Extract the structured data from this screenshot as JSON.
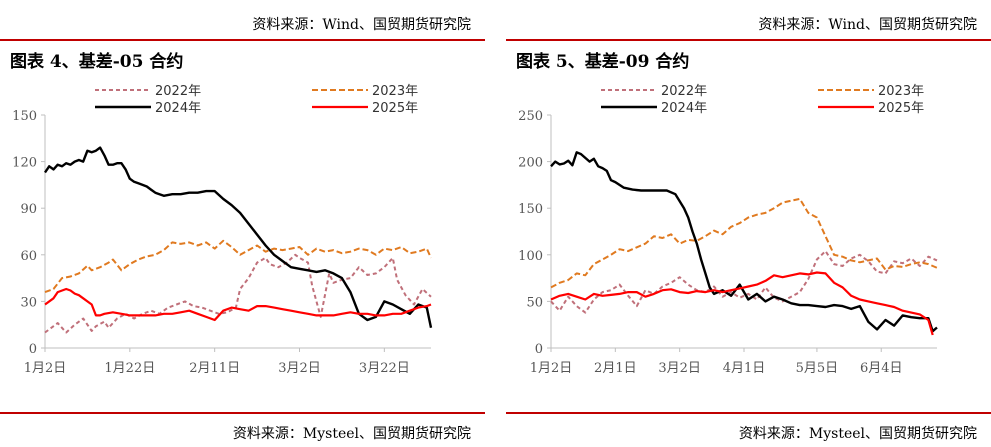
{
  "colors": {
    "accent_rule": "#c00000",
    "s2022": "#c0707a",
    "s2023": "#e07a20",
    "s2024": "#000000",
    "s2025": "#ff0000"
  },
  "panels": [
    {
      "source_top": "资料来源：Wind、国贸期货研究院",
      "title": "图表 4、基差-05 合约",
      "source_bottom": "资料来源：Mysteel、国贸期货研究院",
      "chart_data": {
        "type": "line",
        "title": "图表 4、基差-05 合约",
        "ylim": [
          0,
          150
        ],
        "yticks": [
          0,
          30,
          60,
          90,
          120,
          150
        ],
        "xlim": [
          0,
          91
        ],
        "xticks": [
          {
            "pos": 0,
            "label": "1月2日"
          },
          {
            "pos": 20,
            "label": "1月22日"
          },
          {
            "pos": 40,
            "label": "2月11日"
          },
          {
            "pos": 60,
            "label": "3月2日"
          },
          {
            "pos": 80,
            "label": "3月22日"
          }
        ],
        "legend": [
          "2022年",
          "2023年",
          "2024年",
          "2025年"
        ],
        "series": [
          {
            "name": "2022年",
            "style": "dash-small",
            "x": [
              0,
              3,
              5,
              7,
              9,
              11,
              12,
              14,
              15,
              17,
              19,
              21,
              23,
              25,
              27,
              29,
              31,
              33,
              35,
              37,
              39,
              41,
              43,
              45,
              46,
              48,
              50,
              52,
              53,
              55,
              57,
              59,
              60,
              62,
              63,
              65,
              67,
              68,
              70,
              72,
              74,
              76,
              78,
              80,
              82,
              83,
              85,
              87,
              89,
              91
            ],
            "y": [
              10,
              16,
              10,
              15,
              19,
              11,
              14,
              17,
              13,
              19,
              22,
              19,
              22,
              24,
              22,
              26,
              28,
              30,
              27,
              26,
              24,
              22,
              23,
              26,
              38,
              45,
              55,
              58,
              54,
              52,
              55,
              60,
              58,
              55,
              40,
              20,
              48,
              42,
              44,
              45,
              52,
              47,
              48,
              52,
              58,
              44,
              34,
              28,
              38,
              33
            ]
          },
          {
            "name": "2023年",
            "style": "dash",
            "x": [
              0,
              2,
              4,
              6,
              8,
              10,
              11,
              13,
              15,
              16,
              18,
              20,
              22,
              24,
              26,
              28,
              30,
              32,
              34,
              36,
              38,
              40,
              42,
              44,
              46,
              48,
              50,
              52,
              54,
              56,
              58,
              60,
              62,
              64,
              66,
              68,
              70,
              72,
              74,
              76,
              78,
              80,
              82,
              84,
              86,
              88,
              90,
              91
            ],
            "y": [
              36,
              38,
              45,
              46,
              48,
              53,
              50,
              52,
              55,
              57,
              50,
              54,
              57,
              59,
              60,
              63,
              68,
              67,
              68,
              66,
              68,
              64,
              69,
              65,
              60,
              63,
              66,
              62,
              64,
              63,
              64,
              65,
              60,
              64,
              62,
              63,
              61,
              62,
              64,
              63,
              60,
              64,
              63,
              65,
              61,
              62,
              64,
              58
            ]
          },
          {
            "name": "2024年",
            "style": "solid",
            "x": [
              0,
              1,
              2,
              3,
              4,
              5,
              6,
              7,
              8,
              9,
              10,
              11,
              12,
              13,
              14,
              15,
              16,
              17,
              18,
              19,
              20,
              21,
              22,
              23,
              24,
              25,
              26,
              27,
              28,
              30,
              32,
              34,
              36,
              38,
              40,
              42,
              44,
              46,
              48,
              50,
              52,
              54,
              56,
              58,
              60,
              62,
              64,
              66,
              68,
              70,
              72,
              74,
              76,
              78,
              80,
              82,
              84,
              86,
              88,
              90,
              91
            ],
            "y": [
              113,
              117,
              115,
              118,
              117,
              119,
              118,
              120,
              121,
              120,
              127,
              126,
              127,
              129,
              124,
              118,
              118,
              119,
              119,
              115,
              109,
              107,
              106,
              105,
              104,
              102,
              100,
              99,
              98,
              99,
              99,
              100,
              100,
              101,
              101,
              96,
              92,
              87,
              80,
              73,
              66,
              60,
              56,
              52,
              51,
              50,
              49,
              50,
              48,
              45,
              36,
              22,
              18,
              20,
              30,
              28,
              25,
              22,
              28,
              26,
              13
            ]
          },
          {
            "name": "2025年",
            "style": "solid",
            "x": [
              0,
              2,
              3,
              5,
              6,
              7,
              8,
              9,
              10,
              11,
              12,
              13,
              14,
              16,
              18,
              20,
              22,
              24,
              26,
              28,
              30,
              32,
              34,
              36,
              38,
              40,
              42,
              44,
              46,
              48,
              50,
              52,
              54,
              56,
              58,
              60,
              62,
              64,
              66,
              68,
              70,
              72,
              74,
              76,
              78,
              80,
              82,
              84,
              86,
              88,
              90,
              91
            ],
            "y": [
              28,
              32,
              36,
              38,
              37,
              35,
              34,
              32,
              30,
              28,
              21,
              21,
              22,
              23,
              22,
              21,
              21,
              21,
              21,
              22,
              22,
              23,
              24,
              22,
              20,
              18,
              24,
              26,
              25,
              24,
              27,
              27,
              26,
              25,
              24,
              23,
              22,
              21,
              21,
              21,
              22,
              23,
              22,
              22,
              21,
              21,
              22,
              22,
              24,
              26,
              27,
              28
            ]
          }
        ]
      }
    },
    {
      "source_top": "资料来源：Wind、国贸期货研究院",
      "title": "图表 5、基差-09 合约",
      "source_bottom": "资料来源：Mysteel、国贸期货研究院",
      "chart_data": {
        "type": "line",
        "title": "图表 5、基差-09 合约",
        "ylim": [
          0,
          250
        ],
        "yticks": [
          0,
          50,
          100,
          150,
          200,
          250
        ],
        "xlim": [
          0,
          180
        ],
        "xticks": [
          {
            "pos": 0,
            "label": "1月2日"
          },
          {
            "pos": 30,
            "label": "2月1日"
          },
          {
            "pos": 60,
            "label": "3月2日"
          },
          {
            "pos": 90,
            "label": "4月1日"
          },
          {
            "pos": 124,
            "label": "5月5日"
          },
          {
            "pos": 154,
            "label": "6月4日"
          }
        ],
        "legend": [
          "2022年",
          "2023年",
          "2024年",
          "2025年"
        ],
        "series": [
          {
            "name": "2022年",
            "style": "dash-small",
            "x": [
              0,
              4,
              8,
              12,
              16,
              20,
              24,
              28,
              32,
              36,
              40,
              44,
              48,
              52,
              56,
              60,
              64,
              68,
              72,
              76,
              80,
              84,
              88,
              92,
              96,
              100,
              104,
              108,
              112,
              116,
              120,
              124,
              128,
              132,
              136,
              140,
              144,
              148,
              152,
              156,
              160,
              164,
              168,
              172,
              176,
              180
            ],
            "y": [
              50,
              40,
              55,
              45,
              38,
              52,
              60,
              62,
              68,
              56,
              45,
              62,
              58,
              66,
              70,
              76,
              68,
              62,
              60,
              66,
              55,
              60,
              54,
              58,
              52,
              65,
              54,
              50,
              55,
              60,
              74,
              95,
              104,
              90,
              88,
              96,
              100,
              93,
              82,
              80,
              93,
              91,
              96,
              88,
              98,
              94
            ]
          },
          {
            "name": "2023年",
            "style": "dash",
            "x": [
              0,
              4,
              8,
              12,
              16,
              20,
              24,
              28,
              32,
              36,
              40,
              44,
              48,
              52,
              56,
              60,
              64,
              68,
              72,
              76,
              80,
              84,
              88,
              92,
              96,
              100,
              104,
              108,
              112,
              116,
              120,
              124,
              128,
              132,
              136,
              140,
              144,
              148,
              152,
              156,
              160,
              164,
              168,
              172,
              176,
              180
            ],
            "y": [
              65,
              70,
              73,
              80,
              78,
              90,
              95,
              100,
              106,
              104,
              108,
              112,
              120,
              118,
              122,
              112,
              116,
              115,
              120,
              126,
              122,
              130,
              134,
              140,
              143,
              145,
              150,
              156,
              158,
              160,
              145,
              140,
              120,
              100,
              98,
              94,
              92,
              94,
              96,
              84,
              88,
              87,
              90,
              92,
              90,
              86
            ]
          },
          {
            "name": "2024年",
            "style": "solid",
            "x": [
              0,
              2,
              4,
              6,
              8,
              10,
              12,
              14,
              16,
              18,
              20,
              22,
              24,
              26,
              28,
              30,
              34,
              38,
              42,
              46,
              50,
              54,
              58,
              62,
              64,
              66,
              68,
              70,
              72,
              74,
              76,
              80,
              84,
              88,
              92,
              96,
              100,
              104,
              108,
              112,
              116,
              120,
              124,
              128,
              132,
              136,
              140,
              144,
              148,
              152,
              156,
              160,
              164,
              168,
              172,
              176,
              178,
              180
            ],
            "y": [
              195,
              200,
              197,
              198,
              201,
              196,
              210,
              208,
              204,
              200,
              203,
              195,
              193,
              190,
              180,
              178,
              172,
              170,
              169,
              169,
              169,
              169,
              165,
              150,
              140,
              125,
              112,
              95,
              80,
              65,
              58,
              62,
              56,
              68,
              52,
              58,
              50,
              55,
              52,
              48,
              46,
              46,
              45,
              44,
              46,
              45,
              42,
              45,
              28,
              20,
              30,
              24,
              35,
              33,
              32,
              32,
              18,
              22
            ]
          },
          {
            "name": "2025年",
            "style": "solid",
            "x": [
              0,
              4,
              8,
              12,
              16,
              20,
              24,
              28,
              32,
              36,
              40,
              44,
              48,
              52,
              56,
              60,
              64,
              68,
              72,
              76,
              80,
              84,
              88,
              92,
              96,
              100,
              104,
              108,
              112,
              116,
              120,
              124,
              128,
              132,
              136,
              140,
              144,
              148,
              152,
              156,
              160,
              164,
              168,
              172,
              176,
              178
            ],
            "y": [
              52,
              56,
              58,
              55,
              52,
              58,
              56,
              57,
              58,
              60,
              60,
              55,
              58,
              62,
              63,
              60,
              59,
              61,
              60,
              62,
              60,
              62,
              64,
              66,
              68,
              72,
              78,
              76,
              78,
              80,
              79,
              81,
              80,
              70,
              65,
              56,
              52,
              50,
              48,
              46,
              44,
              40,
              38,
              36,
              30,
              14
            ]
          }
        ]
      }
    }
  ]
}
